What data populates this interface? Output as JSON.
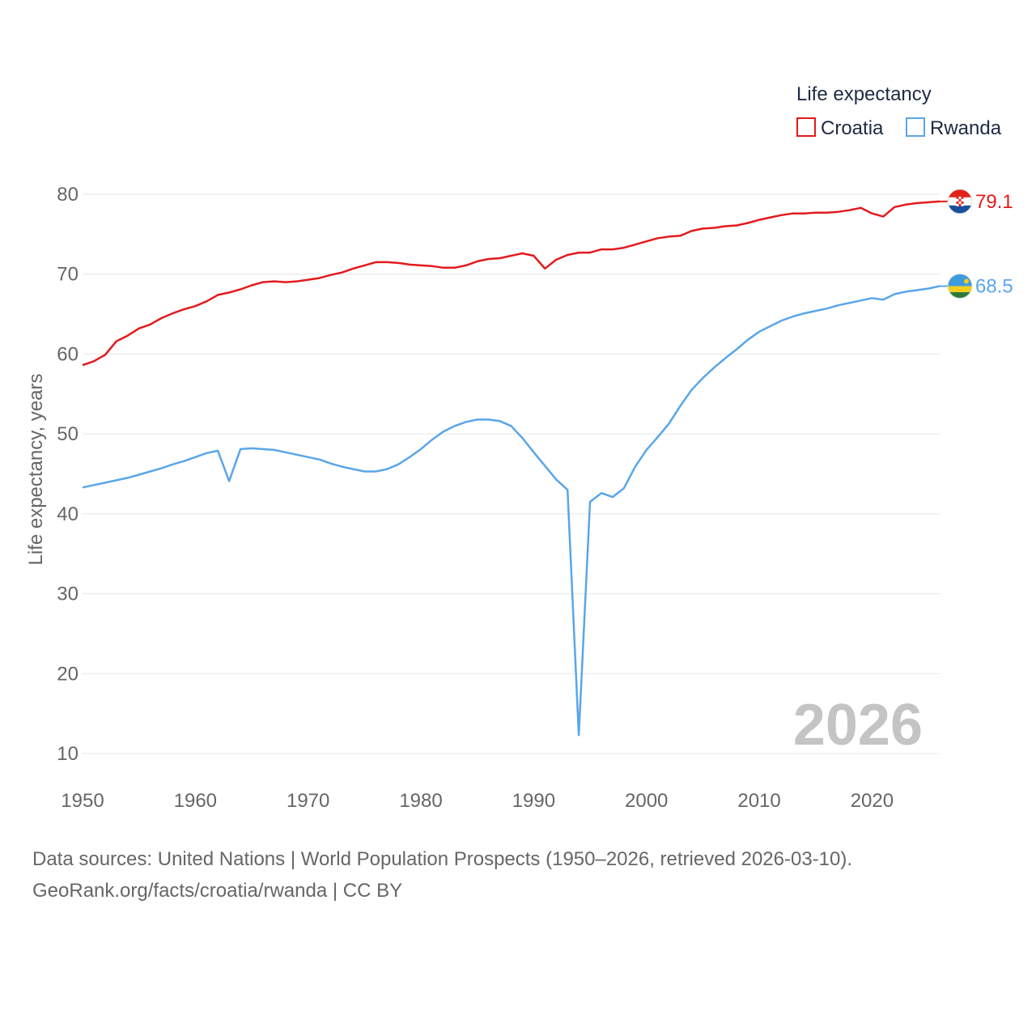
{
  "chart_data": {
    "type": "line",
    "title": "",
    "xlabel": "",
    "ylabel": "Life expectancy, years",
    "xlim": [
      1950,
      2026
    ],
    "ylim": [
      10,
      80
    ],
    "x_ticks": [
      1950,
      1960,
      1970,
      1980,
      1990,
      2000,
      2010,
      2020
    ],
    "y_ticks": [
      10,
      20,
      30,
      40,
      50,
      60,
      70,
      80
    ],
    "grid": true,
    "legend": {
      "title": "Life expectancy",
      "position": "top-right"
    },
    "watermark_year": "2026",
    "x": [
      1950,
      1951,
      1952,
      1953,
      1954,
      1955,
      1956,
      1957,
      1958,
      1959,
      1960,
      1961,
      1962,
      1963,
      1964,
      1965,
      1966,
      1967,
      1968,
      1969,
      1970,
      1971,
      1972,
      1973,
      1974,
      1975,
      1976,
      1977,
      1978,
      1979,
      1980,
      1981,
      1982,
      1983,
      1984,
      1985,
      1986,
      1987,
      1988,
      1989,
      1990,
      1991,
      1992,
      1993,
      1994,
      1995,
      1996,
      1997,
      1998,
      1999,
      2000,
      2001,
      2002,
      2003,
      2004,
      2005,
      2006,
      2007,
      2008,
      2009,
      2010,
      2011,
      2012,
      2013,
      2014,
      2015,
      2016,
      2017,
      2018,
      2019,
      2020,
      2021,
      2022,
      2023,
      2024,
      2025,
      2026
    ],
    "series": [
      {
        "name": "Croatia",
        "color": "#e31a1c",
        "end_label": "79.1",
        "flag_icon": "croatia-flag-icon",
        "values": [
          58.6,
          59.1,
          59.9,
          61.6,
          62.3,
          63.2,
          63.7,
          64.5,
          65.1,
          65.6,
          66.0,
          66.6,
          67.4,
          67.7,
          68.1,
          68.6,
          69.0,
          69.1,
          69.0,
          69.1,
          69.3,
          69.5,
          69.9,
          70.2,
          70.7,
          71.1,
          71.5,
          71.5,
          71.4,
          71.2,
          71.1,
          71.0,
          70.8,
          70.8,
          71.1,
          71.6,
          71.9,
          72.0,
          72.3,
          72.6,
          72.3,
          70.7,
          71.8,
          72.4,
          72.7,
          72.7,
          73.1,
          73.1,
          73.3,
          73.7,
          74.1,
          74.5,
          74.7,
          74.8,
          75.4,
          75.7,
          75.8,
          76.0,
          76.1,
          76.4,
          76.8,
          77.1,
          77.4,
          77.6,
          77.6,
          77.7,
          77.7,
          77.8,
          78.0,
          78.3,
          77.6,
          77.2,
          78.4,
          78.7,
          78.9,
          79.0,
          79.1
        ]
      },
      {
        "name": "Rwanda",
        "color": "#5aa6e8",
        "end_label": "68.5",
        "flag_icon": "rwanda-flag-icon",
        "values": [
          43.3,
          43.6,
          43.9,
          44.2,
          44.5,
          44.9,
          45.3,
          45.7,
          46.2,
          46.6,
          47.1,
          47.6,
          47.9,
          44.1,
          48.1,
          48.2,
          48.1,
          48.0,
          47.7,
          47.4,
          47.1,
          46.8,
          46.3,
          45.9,
          45.6,
          45.3,
          45.3,
          45.6,
          46.2,
          47.1,
          48.1,
          49.3,
          50.3,
          51.0,
          51.5,
          51.8,
          51.8,
          51.6,
          51.0,
          49.5,
          47.7,
          46.0,
          44.3,
          43.0,
          12.3,
          41.5,
          42.6,
          42.1,
          43.2,
          45.9,
          48.0,
          49.6,
          51.3,
          53.5,
          55.5,
          57.0,
          58.3,
          59.5,
          60.6,
          61.8,
          62.8,
          63.5,
          64.2,
          64.7,
          65.1,
          65.4,
          65.7,
          66.1,
          66.4,
          66.7,
          67.0,
          66.8,
          67.5,
          67.8,
          68.0,
          68.2,
          68.5
        ]
      }
    ]
  },
  "footer": {
    "line1": "Data sources: United Nations | World Population Prospects (1950–2026, retrieved 2026-03-10).",
    "line2": "GeoRank.org/facts/croatia/rwanda | CC BY"
  }
}
